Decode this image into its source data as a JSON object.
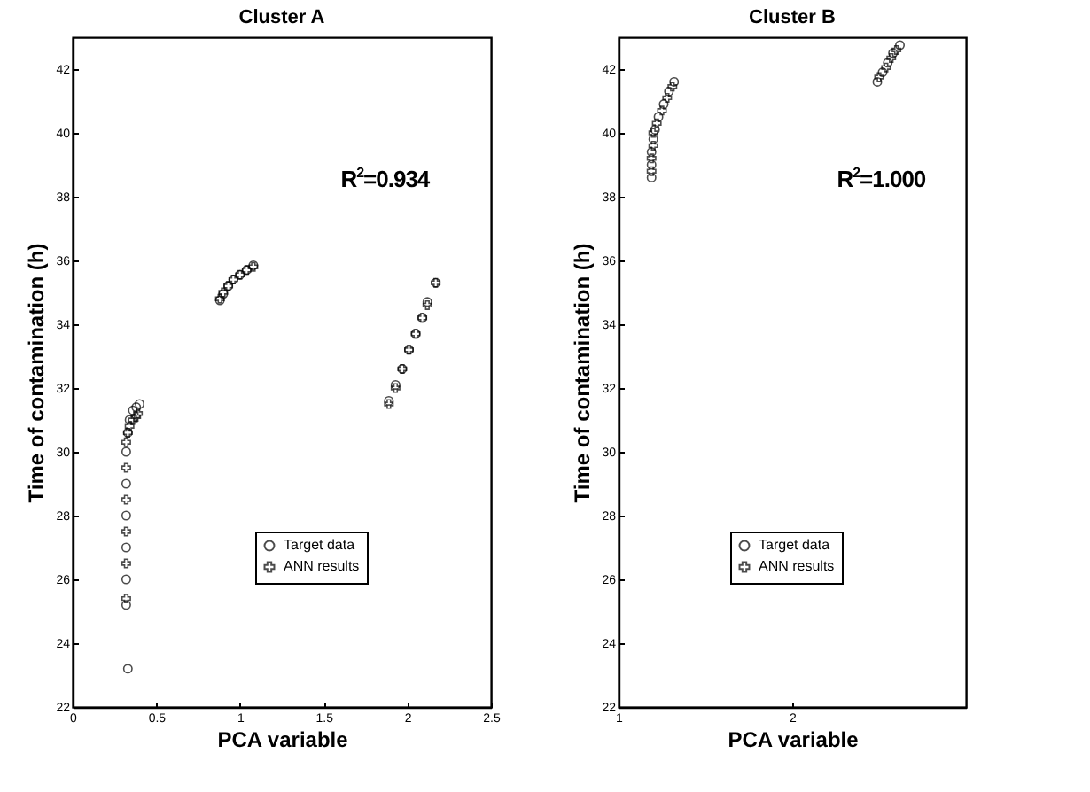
{
  "chart_data": [
    {
      "type": "scatter",
      "title": "Cluster A",
      "xlabel": "PCA variable",
      "ylabel": "Time of contamination (h)",
      "annotations": [
        "R$^{2}$=0.934"
      ],
      "xlim": [
        0,
        2.5
      ],
      "xticks": [
        0,
        0.5,
        1,
        1.5,
        2,
        2.5
      ],
      "ylim": [
        22,
        43
      ],
      "yticks": [
        22,
        24,
        26,
        28,
        30,
        32,
        34,
        36,
        38,
        40,
        42
      ],
      "grid": false,
      "legend": "bottom right",
      "series": [
        {
          "name": "Target data",
          "color": "#000000",
          "marker": "circle",
          "x": [
            0.33,
            0.32,
            0.32,
            0.32,
            0.32,
            0.32,
            0.32,
            0.33,
            0.34,
            0.36,
            0.38,
            0.4,
            0.88,
            0.9,
            0.93,
            0.96,
            1.0,
            1.04,
            1.08,
            1.89,
            1.93,
            1.97,
            2.01,
            2.05,
            2.09,
            2.12,
            2.17
          ],
          "values": [
            23.2,
            25.2,
            26,
            27,
            28,
            29,
            30,
            30.6,
            31.0,
            31.3,
            31.4,
            31.5,
            34.75,
            34.95,
            35.2,
            35.4,
            35.55,
            35.7,
            35.85,
            31.6,
            32.1,
            32.6,
            33.2,
            33.7,
            34.2,
            34.7,
            35.3
          ]
        },
        {
          "name": "ANN results",
          "color": "#000000",
          "marker": "cross",
          "x": [
            0.32,
            0.32,
            0.32,
            0.32,
            0.32,
            0.32,
            0.33,
            0.34,
            0.36,
            0.38,
            0.39,
            0.88,
            0.9,
            0.93,
            0.96,
            1.0,
            1.04,
            1.08,
            1.89,
            1.93,
            1.97,
            2.01,
            2.05,
            2.09,
            2.12,
            2.17
          ],
          "values": [
            25.4,
            26.5,
            27.5,
            28.5,
            29.5,
            30.3,
            30.6,
            30.8,
            31.0,
            31.1,
            31.2,
            34.8,
            35.0,
            35.2,
            35.4,
            35.55,
            35.7,
            35.8,
            31.5,
            32.0,
            32.6,
            33.2,
            33.7,
            34.2,
            34.6,
            35.3
          ]
        }
      ]
    },
    {
      "type": "scatter",
      "title": "Cluster B",
      "xlabel": "PCA variable",
      "ylabel": "Time of contamination (h)",
      "annotations": [
        "R$^{2}$=1.000"
      ],
      "xlim": [
        1,
        3
      ],
      "xticks": [
        1,
        2
      ],
      "ylim": [
        22,
        43
      ],
      "yticks": [
        22,
        24,
        26,
        28,
        30,
        32,
        34,
        36,
        38,
        40,
        42
      ],
      "grid": false,
      "legend": "bottom right",
      "series": [
        {
          "name": "Target data",
          "color": "#000000",
          "marker": "circle",
          "x": [
            1.19,
            1.19,
            1.19,
            1.2,
            1.21,
            1.23,
            1.26,
            1.29,
            1.32,
            2.49,
            2.52,
            2.55,
            2.58,
            2.62
          ],
          "values": [
            38.6,
            39.0,
            39.4,
            39.8,
            40.1,
            40.5,
            40.9,
            41.3,
            41.6,
            41.6,
            41.9,
            42.2,
            42.5,
            42.75
          ]
        },
        {
          "name": "ANN results",
          "color": "#000000",
          "marker": "cross",
          "x": [
            1.19,
            1.19,
            1.2,
            1.2,
            1.22,
            1.25,
            1.28,
            1.31,
            2.5,
            2.54,
            2.57,
            2.6
          ],
          "values": [
            38.8,
            39.2,
            39.6,
            40.0,
            40.3,
            40.7,
            41.1,
            41.45,
            41.75,
            42.05,
            42.35,
            42.6
          ]
        }
      ]
    }
  ]
}
